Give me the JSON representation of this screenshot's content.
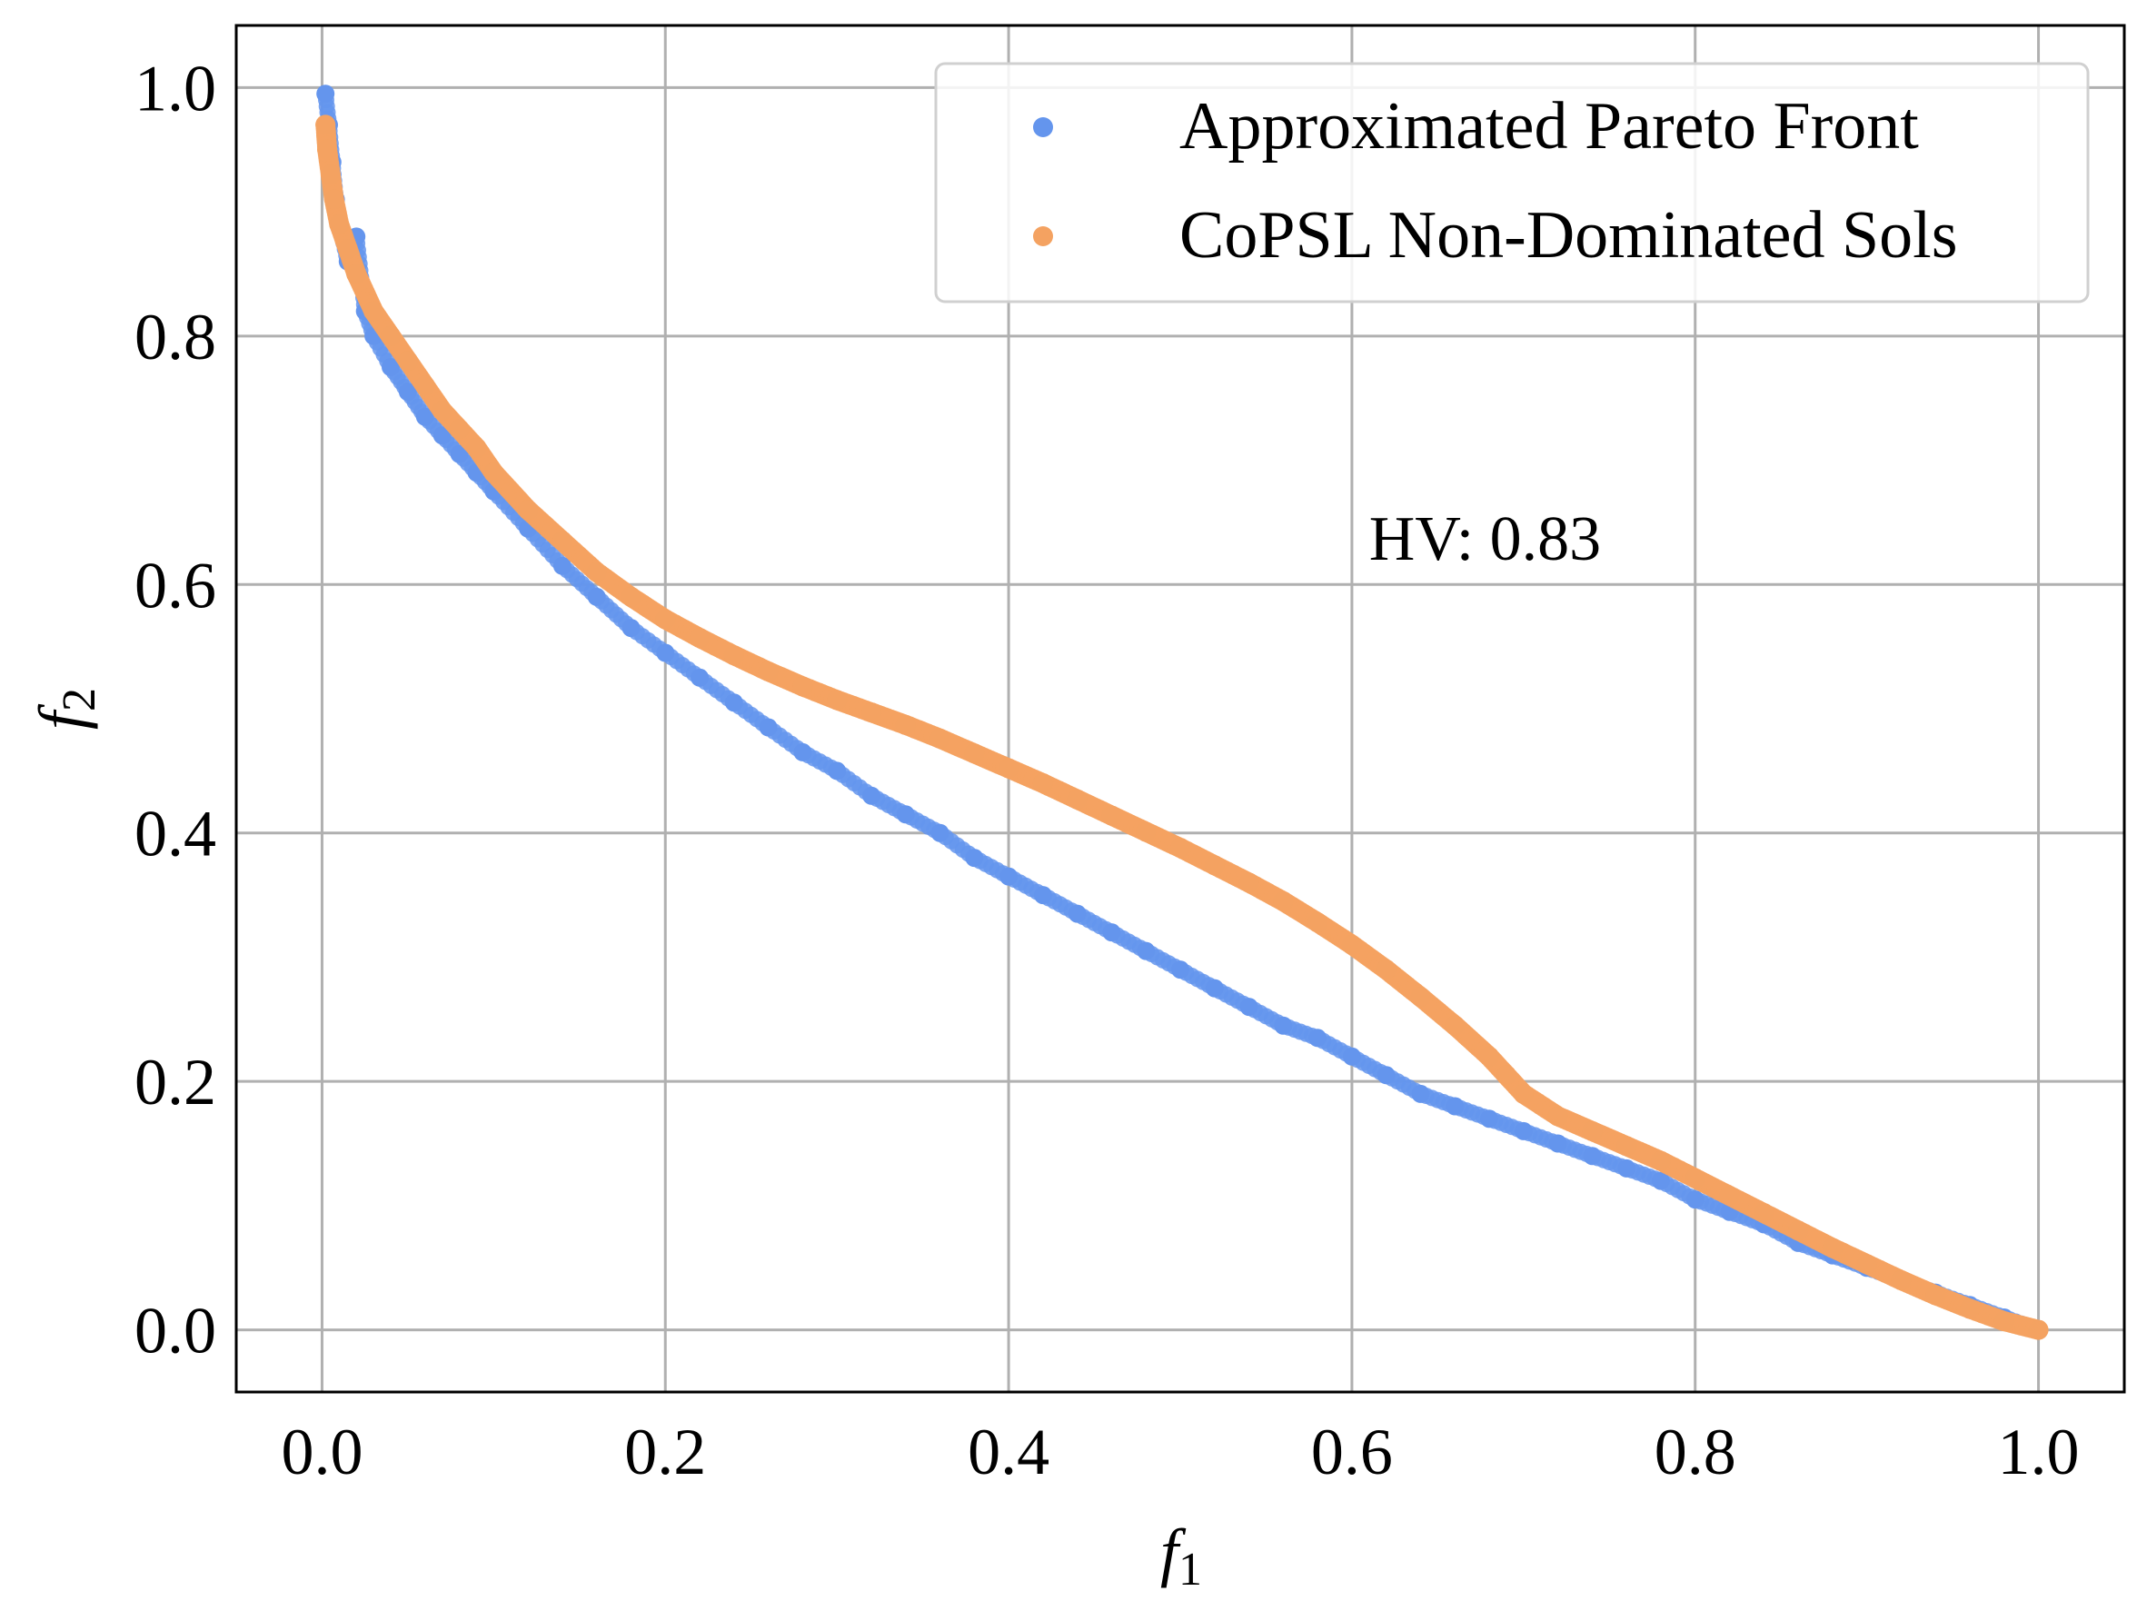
{
  "chart_data": {
    "type": "scatter",
    "title": "",
    "xlabel": "f",
    "xlabel_sub": "1",
    "ylabel": "f",
    "ylabel_sub": "2",
    "xlim": [
      -0.05,
      1.05
    ],
    "ylim": [
      -0.05,
      1.05
    ],
    "grid": true,
    "legend_position": "top-right",
    "x_ticks": [
      "0.0",
      "0.2",
      "0.4",
      "0.6",
      "0.8",
      "1.0"
    ],
    "y_ticks": [
      "0.0",
      "0.2",
      "0.4",
      "0.6",
      "0.8",
      "1.0"
    ],
    "annotation": {
      "text": "HV: 0.83",
      "x": 0.61,
      "y": 0.62
    },
    "series": [
      {
        "name": "Approximated Pareto Front",
        "color": "#6495ED",
        "x": [
          0.002,
          0.004,
          0.006,
          0.008,
          0.01,
          0.015,
          0.02,
          0.025,
          0.03,
          0.04,
          0.05,
          0.06,
          0.07,
          0.08,
          0.09,
          0.1,
          0.12,
          0.14,
          0.16,
          0.18,
          0.2,
          0.22,
          0.24,
          0.26,
          0.28,
          0.3,
          0.32,
          0.34,
          0.36,
          0.38,
          0.4,
          0.42,
          0.44,
          0.46,
          0.48,
          0.5,
          0.52,
          0.54,
          0.56,
          0.58,
          0.6,
          0.62,
          0.64,
          0.66,
          0.68,
          0.7,
          0.72,
          0.74,
          0.76,
          0.78,
          0.8,
          0.82,
          0.84,
          0.86,
          0.88,
          0.9,
          0.92,
          0.94,
          0.96,
          0.98,
          1.0
        ],
        "y": [
          0.995,
          0.97,
          0.94,
          0.91,
          0.89,
          0.86,
          0.88,
          0.82,
          0.8,
          0.775,
          0.755,
          0.735,
          0.72,
          0.705,
          0.69,
          0.675,
          0.645,
          0.615,
          0.59,
          0.565,
          0.545,
          0.525,
          0.505,
          0.485,
          0.465,
          0.45,
          0.43,
          0.415,
          0.4,
          0.38,
          0.365,
          0.35,
          0.335,
          0.32,
          0.305,
          0.29,
          0.275,
          0.26,
          0.245,
          0.235,
          0.22,
          0.205,
          0.19,
          0.18,
          0.17,
          0.16,
          0.15,
          0.14,
          0.13,
          0.12,
          0.105,
          0.095,
          0.085,
          0.07,
          0.06,
          0.05,
          0.04,
          0.03,
          0.02,
          0.01,
          0.0
        ]
      },
      {
        "name": "CoPSL Non-Dominated Sols",
        "color": "#F4A261",
        "x": [
          0.002,
          0.003,
          0.005,
          0.007,
          0.01,
          0.015,
          0.02,
          0.03,
          0.04,
          0.05,
          0.06,
          0.07,
          0.08,
          0.09,
          0.1,
          0.12,
          0.14,
          0.16,
          0.18,
          0.2,
          0.22,
          0.24,
          0.26,
          0.28,
          0.3,
          0.32,
          0.34,
          0.36,
          0.38,
          0.4,
          0.42,
          0.44,
          0.46,
          0.48,
          0.5,
          0.52,
          0.54,
          0.56,
          0.58,
          0.6,
          0.62,
          0.64,
          0.66,
          0.68,
          0.69,
          0.7,
          0.72,
          0.74,
          0.76,
          0.78,
          0.8,
          0.82,
          0.84,
          0.86,
          0.88,
          0.9,
          0.92,
          0.94,
          0.96,
          0.98,
          1.0
        ],
        "y": [
          0.97,
          0.95,
          0.93,
          0.91,
          0.89,
          0.87,
          0.85,
          0.82,
          0.8,
          0.78,
          0.76,
          0.74,
          0.725,
          0.71,
          0.69,
          0.66,
          0.635,
          0.61,
          0.59,
          0.572,
          0.557,
          0.543,
          0.53,
          0.518,
          0.507,
          0.497,
          0.487,
          0.476,
          0.464,
          0.452,
          0.44,
          0.427,
          0.414,
          0.401,
          0.388,
          0.374,
          0.36,
          0.345,
          0.328,
          0.31,
          0.29,
          0.268,
          0.245,
          0.22,
          0.205,
          0.19,
          0.172,
          0.16,
          0.148,
          0.136,
          0.122,
          0.108,
          0.094,
          0.08,
          0.066,
          0.053,
          0.04,
          0.028,
          0.017,
          0.007,
          0.0
        ]
      }
    ]
  }
}
